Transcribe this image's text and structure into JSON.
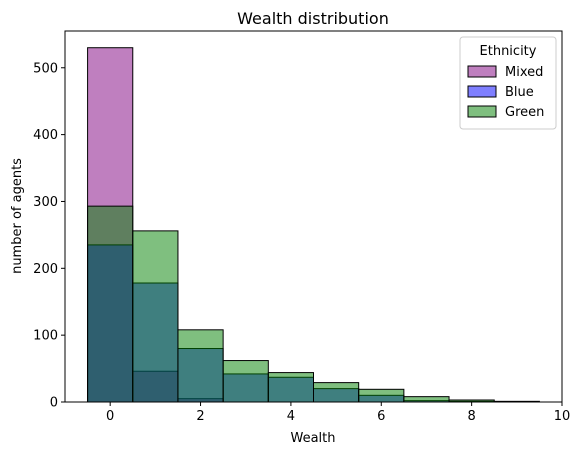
{
  "chart_data": {
    "type": "bar",
    "subtype": "overlaid-histogram",
    "title": "Wealth distribution",
    "xlabel": "Wealth",
    "ylabel": "number of agents",
    "xlim": [
      -1,
      10
    ],
    "ylim": [
      0,
      555
    ],
    "xticks": [
      0,
      2,
      4,
      6,
      8,
      10
    ],
    "yticks": [
      0,
      100,
      200,
      300,
      400,
      500
    ],
    "bins": [
      0,
      1,
      2,
      3,
      4,
      5,
      6,
      7,
      8,
      9
    ],
    "bin_width": 1,
    "grid": false,
    "legend": {
      "title": "Ethnicity",
      "placement": "top-right"
    },
    "series": [
      {
        "name": "Mixed",
        "color": "#800080",
        "alpha": 0.5,
        "values": [
          530,
          46,
          5,
          0,
          0,
          0,
          0,
          0,
          0,
          0
        ]
      },
      {
        "name": "Blue",
        "color": "#0000ff",
        "alpha": 0.5,
        "values": [
          235,
          178,
          80,
          42,
          37,
          20,
          10,
          2,
          1,
          0
        ]
      },
      {
        "name": "Green",
        "color": "#008000",
        "alpha": 0.5,
        "values": [
          293,
          256,
          108,
          62,
          44,
          29,
          19,
          8,
          3,
          1
        ]
      }
    ]
  }
}
